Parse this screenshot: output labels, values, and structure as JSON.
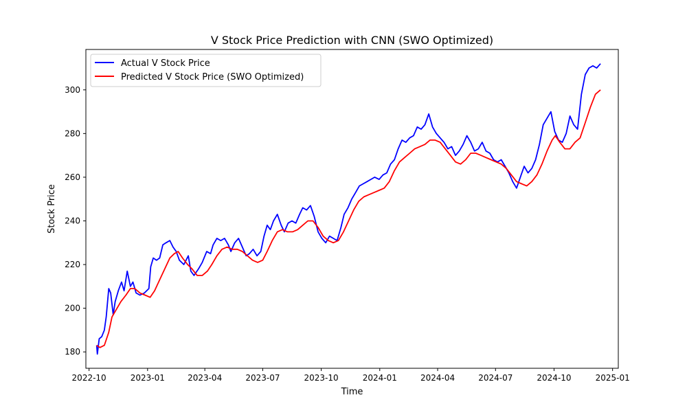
{
  "chart_data": {
    "type": "line",
    "title": "V Stock Price Prediction with CNN (SWO Optimized)",
    "xlabel": "Time",
    "ylabel": "Stock Price",
    "xlim": [
      "2022-09-26",
      "2025-01-10"
    ],
    "ylim": [
      172.5,
      318.5
    ],
    "x_ticks": [
      "2022-10",
      "2023-01",
      "2023-04",
      "2023-07",
      "2023-10",
      "2024-01",
      "2024-04",
      "2024-07",
      "2024-10",
      "2025-01"
    ],
    "y_ticks": [
      180,
      200,
      220,
      240,
      260,
      280,
      300
    ],
    "grid": false,
    "legend_position": "upper-left",
    "series": [
      {
        "name": "Actual V Stock Price",
        "color": "#0000ff",
        "points": [
          [
            "2022-10-13",
            183
          ],
          [
            "2022-10-14",
            179
          ],
          [
            "2022-10-17",
            186
          ],
          [
            "2022-10-21",
            187
          ],
          [
            "2022-10-25",
            190
          ],
          [
            "2022-10-28",
            196
          ],
          [
            "2022-11-01",
            209
          ],
          [
            "2022-11-04",
            207
          ],
          [
            "2022-11-08",
            197
          ],
          [
            "2022-11-11",
            203
          ],
          [
            "2022-11-16",
            208
          ],
          [
            "2022-11-21",
            212
          ],
          [
            "2022-11-25",
            208
          ],
          [
            "2022-11-30",
            217
          ],
          [
            "2022-12-05",
            210
          ],
          [
            "2022-12-09",
            212
          ],
          [
            "2022-12-14",
            207
          ],
          [
            "2022-12-20",
            206
          ],
          [
            "2022-12-27",
            207
          ],
          [
            "2023-01-03",
            209
          ],
          [
            "2023-01-06",
            219
          ],
          [
            "2023-01-10",
            223
          ],
          [
            "2023-01-15",
            222
          ],
          [
            "2023-01-20",
            223
          ],
          [
            "2023-01-25",
            229
          ],
          [
            "2023-01-30",
            230
          ],
          [
            "2023-02-05",
            231
          ],
          [
            "2023-02-10",
            228
          ],
          [
            "2023-02-15",
            226
          ],
          [
            "2023-02-20",
            222
          ],
          [
            "2023-02-27",
            220
          ],
          [
            "2023-03-06",
            224
          ],
          [
            "2023-03-10",
            217
          ],
          [
            "2023-03-15",
            215
          ],
          [
            "2023-03-22",
            218
          ],
          [
            "2023-03-28",
            221
          ],
          [
            "2023-04-04",
            226
          ],
          [
            "2023-04-10",
            225
          ],
          [
            "2023-04-14",
            229
          ],
          [
            "2023-04-20",
            232
          ],
          [
            "2023-04-26",
            231
          ],
          [
            "2023-05-02",
            232
          ],
          [
            "2023-05-08",
            229
          ],
          [
            "2023-05-12",
            226
          ],
          [
            "2023-05-18",
            230
          ],
          [
            "2023-05-24",
            232
          ],
          [
            "2023-05-30",
            228
          ],
          [
            "2023-06-05",
            224
          ],
          [
            "2023-06-10",
            225
          ],
          [
            "2023-06-16",
            227
          ],
          [
            "2023-06-22",
            224
          ],
          [
            "2023-06-28",
            226
          ],
          [
            "2023-07-03",
            233
          ],
          [
            "2023-07-08",
            238
          ],
          [
            "2023-07-13",
            236
          ],
          [
            "2023-07-18",
            240
          ],
          [
            "2023-07-24",
            243
          ],
          [
            "2023-07-30",
            238
          ],
          [
            "2023-08-04",
            235
          ],
          [
            "2023-08-10",
            239
          ],
          [
            "2023-08-16",
            240
          ],
          [
            "2023-08-22",
            239
          ],
          [
            "2023-08-28",
            243
          ],
          [
            "2023-09-02",
            246
          ],
          [
            "2023-09-08",
            245
          ],
          [
            "2023-09-14",
            247
          ],
          [
            "2023-09-20",
            242
          ],
          [
            "2023-09-26",
            235
          ],
          [
            "2023-10-02",
            232
          ],
          [
            "2023-10-08",
            230
          ],
          [
            "2023-10-14",
            233
          ],
          [
            "2023-10-20",
            232
          ],
          [
            "2023-10-26",
            231
          ],
          [
            "2023-11-01",
            237
          ],
          [
            "2023-11-06",
            243
          ],
          [
            "2023-11-12",
            246
          ],
          [
            "2023-11-18",
            250
          ],
          [
            "2023-11-24",
            253
          ],
          [
            "2023-11-30",
            256
          ],
          [
            "2023-12-06",
            257
          ],
          [
            "2023-12-12",
            258
          ],
          [
            "2023-12-18",
            259
          ],
          [
            "2023-12-24",
            260
          ],
          [
            "2023-12-31",
            259
          ],
          [
            "2024-01-06",
            261
          ],
          [
            "2024-01-12",
            262
          ],
          [
            "2024-01-18",
            266
          ],
          [
            "2024-01-24",
            268
          ],
          [
            "2024-01-30",
            273
          ],
          [
            "2024-02-05",
            277
          ],
          [
            "2024-02-11",
            276
          ],
          [
            "2024-02-17",
            278
          ],
          [
            "2024-02-23",
            279
          ],
          [
            "2024-02-29",
            283
          ],
          [
            "2024-03-06",
            282
          ],
          [
            "2024-03-12",
            284
          ],
          [
            "2024-03-18",
            289
          ],
          [
            "2024-03-24",
            283
          ],
          [
            "2024-03-30",
            280
          ],
          [
            "2024-04-05",
            278
          ],
          [
            "2024-04-11",
            276
          ],
          [
            "2024-04-17",
            273
          ],
          [
            "2024-04-23",
            274
          ],
          [
            "2024-04-29",
            270
          ],
          [
            "2024-05-05",
            272
          ],
          [
            "2024-05-11",
            275
          ],
          [
            "2024-05-17",
            279
          ],
          [
            "2024-05-23",
            276
          ],
          [
            "2024-05-29",
            272
          ],
          [
            "2024-06-04",
            273
          ],
          [
            "2024-06-10",
            276
          ],
          [
            "2024-06-16",
            272
          ],
          [
            "2024-06-22",
            271
          ],
          [
            "2024-06-28",
            268
          ],
          [
            "2024-07-04",
            267
          ],
          [
            "2024-07-10",
            268
          ],
          [
            "2024-07-16",
            265
          ],
          [
            "2024-07-22",
            262
          ],
          [
            "2024-07-28",
            258
          ],
          [
            "2024-08-03",
            255
          ],
          [
            "2024-08-09",
            260
          ],
          [
            "2024-08-15",
            265
          ],
          [
            "2024-08-21",
            262
          ],
          [
            "2024-08-27",
            264
          ],
          [
            "2024-09-02",
            268
          ],
          [
            "2024-09-08",
            275
          ],
          [
            "2024-09-14",
            284
          ],
          [
            "2024-09-20",
            287
          ],
          [
            "2024-09-26",
            290
          ],
          [
            "2024-10-02",
            281
          ],
          [
            "2024-10-08",
            277
          ],
          [
            "2024-10-14",
            276
          ],
          [
            "2024-10-20",
            280
          ],
          [
            "2024-10-26",
            288
          ],
          [
            "2024-11-01",
            284
          ],
          [
            "2024-11-07",
            282
          ],
          [
            "2024-11-13",
            298
          ],
          [
            "2024-11-19",
            307
          ],
          [
            "2024-11-25",
            310
          ],
          [
            "2024-12-01",
            311
          ],
          [
            "2024-12-07",
            310
          ],
          [
            "2024-12-13",
            312
          ]
        ]
      },
      {
        "name": "Predicted V Stock Price (SWO Optimized)",
        "color": "#ff0000",
        "points": [
          [
            "2022-10-13",
            183
          ],
          [
            "2022-10-18",
            182
          ],
          [
            "2022-10-25",
            183
          ],
          [
            "2022-11-01",
            189
          ],
          [
            "2022-11-06",
            196
          ],
          [
            "2022-11-12",
            199
          ],
          [
            "2022-11-20",
            203
          ],
          [
            "2022-11-28",
            206
          ],
          [
            "2022-12-05",
            209
          ],
          [
            "2022-12-12",
            209
          ],
          [
            "2022-12-20",
            207
          ],
          [
            "2022-12-28",
            206
          ],
          [
            "2023-01-05",
            205
          ],
          [
            "2023-01-12",
            208
          ],
          [
            "2023-01-20",
            213
          ],
          [
            "2023-01-28",
            218
          ],
          [
            "2023-02-05",
            223
          ],
          [
            "2023-02-12",
            225
          ],
          [
            "2023-02-18",
            226
          ],
          [
            "2023-02-25",
            223
          ],
          [
            "2023-03-05",
            220
          ],
          [
            "2023-03-12",
            218
          ],
          [
            "2023-03-20",
            215
          ],
          [
            "2023-03-28",
            215
          ],
          [
            "2023-04-05",
            217
          ],
          [
            "2023-04-12",
            220
          ],
          [
            "2023-04-20",
            224
          ],
          [
            "2023-04-28",
            227
          ],
          [
            "2023-05-06",
            228
          ],
          [
            "2023-05-14",
            227
          ],
          [
            "2023-05-22",
            227
          ],
          [
            "2023-05-30",
            226
          ],
          [
            "2023-06-07",
            224
          ],
          [
            "2023-06-15",
            222
          ],
          [
            "2023-06-23",
            221
          ],
          [
            "2023-07-01",
            222
          ],
          [
            "2023-07-08",
            226
          ],
          [
            "2023-07-16",
            231
          ],
          [
            "2023-07-24",
            235
          ],
          [
            "2023-08-01",
            236
          ],
          [
            "2023-08-09",
            235
          ],
          [
            "2023-08-17",
            235
          ],
          [
            "2023-08-25",
            236
          ],
          [
            "2023-09-02",
            238
          ],
          [
            "2023-09-10",
            240
          ],
          [
            "2023-09-18",
            240
          ],
          [
            "2023-09-26",
            237
          ],
          [
            "2023-10-04",
            233
          ],
          [
            "2023-10-12",
            231
          ],
          [
            "2023-10-20",
            230
          ],
          [
            "2023-10-28",
            231
          ],
          [
            "2023-11-05",
            235
          ],
          [
            "2023-11-13",
            240
          ],
          [
            "2023-11-21",
            245
          ],
          [
            "2023-11-29",
            249
          ],
          [
            "2023-12-07",
            251
          ],
          [
            "2023-12-15",
            252
          ],
          [
            "2023-12-23",
            253
          ],
          [
            "2023-12-31",
            254
          ],
          [
            "2024-01-08",
            255
          ],
          [
            "2024-01-16",
            258
          ],
          [
            "2024-01-24",
            263
          ],
          [
            "2024-02-01",
            267
          ],
          [
            "2024-02-09",
            269
          ],
          [
            "2024-02-17",
            271
          ],
          [
            "2024-02-25",
            273
          ],
          [
            "2024-03-04",
            274
          ],
          [
            "2024-03-12",
            275
          ],
          [
            "2024-03-20",
            277
          ],
          [
            "2024-03-28",
            277
          ],
          [
            "2024-04-05",
            276
          ],
          [
            "2024-04-13",
            273
          ],
          [
            "2024-04-21",
            270
          ],
          [
            "2024-04-29",
            267
          ],
          [
            "2024-05-07",
            266
          ],
          [
            "2024-05-15",
            268
          ],
          [
            "2024-05-23",
            271
          ],
          [
            "2024-05-31",
            271
          ],
          [
            "2024-06-08",
            270
          ],
          [
            "2024-06-16",
            269
          ],
          [
            "2024-06-24",
            268
          ],
          [
            "2024-07-02",
            267
          ],
          [
            "2024-07-10",
            266
          ],
          [
            "2024-07-18",
            264
          ],
          [
            "2024-07-26",
            261
          ],
          [
            "2024-08-03",
            258
          ],
          [
            "2024-08-11",
            257
          ],
          [
            "2024-08-19",
            256
          ],
          [
            "2024-08-27",
            258
          ],
          [
            "2024-09-04",
            261
          ],
          [
            "2024-09-12",
            266
          ],
          [
            "2024-09-20",
            272
          ],
          [
            "2024-09-28",
            277
          ],
          [
            "2024-10-03",
            279
          ],
          [
            "2024-10-10",
            276
          ],
          [
            "2024-10-18",
            273
          ],
          [
            "2024-10-26",
            273
          ],
          [
            "2024-11-03",
            276
          ],
          [
            "2024-11-11",
            278
          ],
          [
            "2024-11-19",
            285
          ],
          [
            "2024-11-27",
            292
          ],
          [
            "2024-12-05",
            298
          ],
          [
            "2024-12-13",
            300
          ]
        ]
      }
    ]
  }
}
